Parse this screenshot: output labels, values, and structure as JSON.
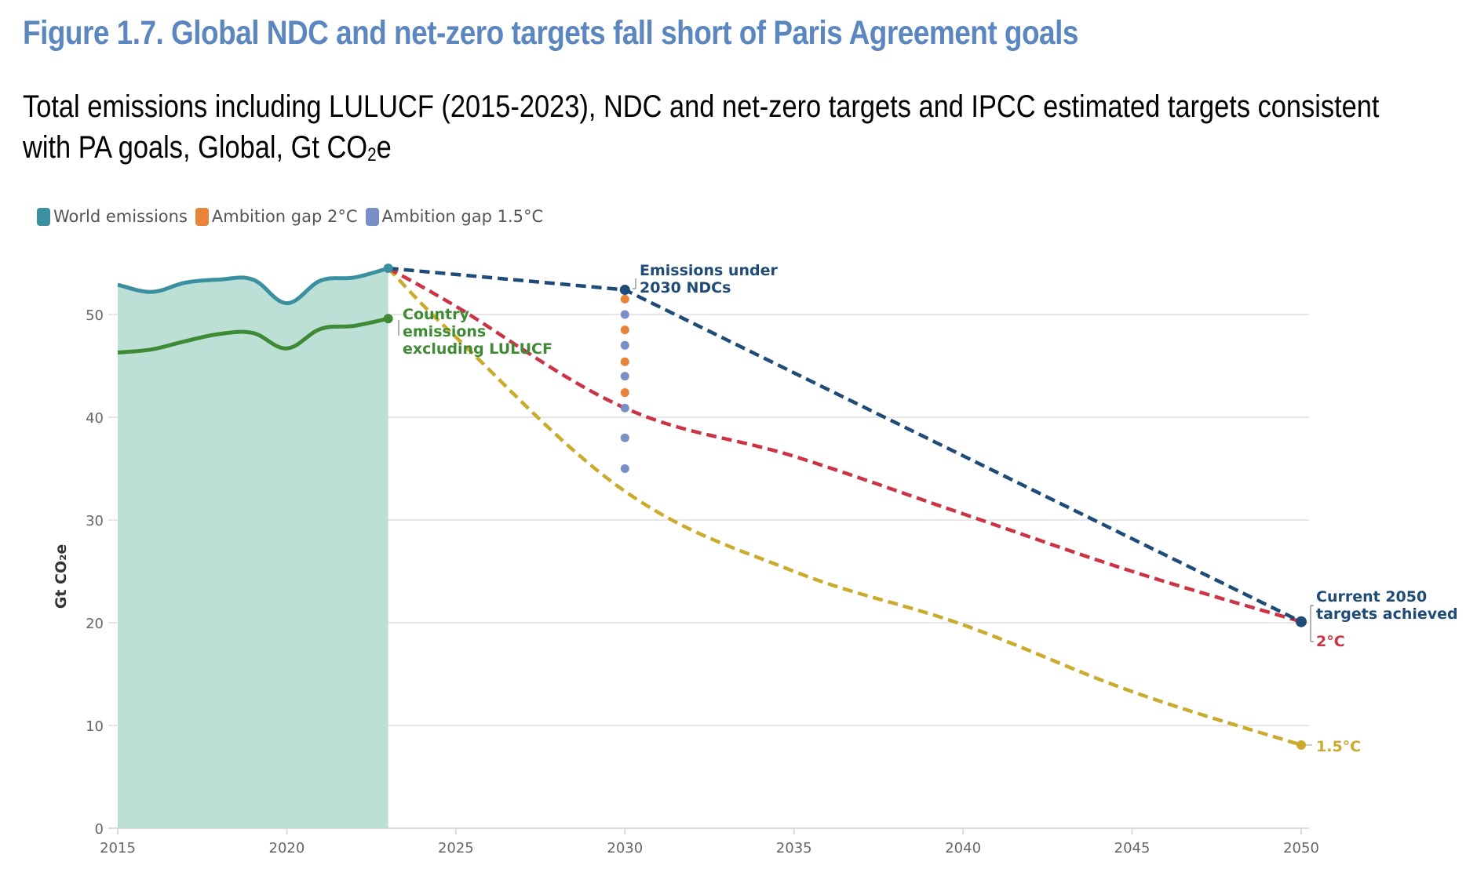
{
  "figure": {
    "title": "Figure 1.7. Global NDC and net-zero targets fall short of Paris Agreement goals",
    "subtitle_line1": "Total emissions including LULUCF (2015-2023), NDC and net-zero targets and IPCC estimated targets consistent",
    "subtitle_line2_prefix": "with PA goals, Global, Gt CO",
    "subtitle_line2_sub": "2",
    "subtitle_line2_suffix": "e"
  },
  "legend": [
    {
      "label": "World emissions",
      "color": "#3a8fa0"
    },
    {
      "label": "Ambition gap 2°C",
      "color": "#e8833a"
    },
    {
      "label": "Ambition gap 1.5°C",
      "color": "#7a8fc8"
    }
  ],
  "colors": {
    "world_line": "#3a8fa0",
    "world_fill": "#bcdfd6",
    "country_line": "#3f8a34",
    "ndc_line": "#1f4b78",
    "two_c_line": "#cc3344",
    "one_five_c_line": "#cbab2e",
    "gap_2c": "#e8833a",
    "gap_1_5c": "#7a8fc8",
    "grid": "#e6e6e6"
  },
  "chart_data": {
    "type": "line",
    "title": "Figure 1.7. Global NDC and net-zero targets fall short of Paris Agreement goals",
    "xlabel": "",
    "ylabel": "Gt CO₂e",
    "xlim": [
      2015,
      2050
    ],
    "ylim": [
      0,
      55
    ],
    "grid": true,
    "legend_position": "top-left",
    "x_ticks": [
      "2015",
      "2020",
      "2025",
      "2030",
      "2035",
      "2040",
      "2045",
      "2050"
    ],
    "y_ticks": [
      "0",
      "10",
      "20",
      "30",
      "40",
      "50"
    ],
    "series": [
      {
        "name": "World emissions",
        "style": "solid-area",
        "x": [
          2015,
          2016,
          2017,
          2018,
          2019,
          2020,
          2021,
          2022,
          2023
        ],
        "y": [
          52.9,
          52.2,
          53.1,
          53.4,
          53.4,
          51.1,
          53.3,
          53.6,
          54.5
        ]
      },
      {
        "name": "Country emissions excluding LULUCF",
        "style": "solid",
        "x": [
          2015,
          2016,
          2017,
          2018,
          2019,
          2020,
          2021,
          2022,
          2023
        ],
        "y": [
          46.3,
          46.6,
          47.4,
          48.1,
          48.2,
          46.7,
          48.6,
          48.9,
          49.6
        ]
      },
      {
        "name": "Emissions under 2030 NDCs / Current 2050 targets achieved",
        "style": "dashed",
        "x": [
          2023,
          2030,
          2050
        ],
        "y": [
          54.5,
          52.4,
          20.1
        ]
      },
      {
        "name": "2°C",
        "style": "dashed",
        "x": [
          2023,
          2025,
          2030,
          2035,
          2040,
          2045,
          2050
        ],
        "y": [
          54.5,
          50.8,
          40.9,
          36.2,
          30.6,
          25.0,
          20.1
        ]
      },
      {
        "name": "1.5°C",
        "style": "dashed",
        "x": [
          2023,
          2025,
          2030,
          2035,
          2040,
          2045,
          2050
        ],
        "y": [
          54.5,
          47.8,
          32.8,
          25.0,
          19.8,
          13.3,
          8.1
        ]
      }
    ],
    "ambition_gap_dots": {
      "x": 2030,
      "points": [
        {
          "y": 51.5,
          "type": "2C"
        },
        {
          "y": 50.0,
          "type": "1.5C"
        },
        {
          "y": 48.5,
          "type": "2C"
        },
        {
          "y": 47.0,
          "type": "1.5C"
        },
        {
          "y": 45.4,
          "type": "2C"
        },
        {
          "y": 44.0,
          "type": "1.5C"
        },
        {
          "y": 42.4,
          "type": "2C"
        },
        {
          "y": 40.9,
          "type": "1.5C"
        },
        {
          "y": 38.0,
          "type": "1.5C"
        },
        {
          "y": 35.0,
          "type": "1.5C"
        }
      ]
    },
    "annotations": {
      "ndc_2030": [
        "Emissions under",
        "2030 NDCs"
      ],
      "country": [
        "Country",
        "emissions",
        "excluding LULUCF"
      ],
      "target_2050": [
        "Current 2050",
        "targets achieved"
      ],
      "two_c": "2°C",
      "one_five_c": "1.5°C"
    }
  }
}
